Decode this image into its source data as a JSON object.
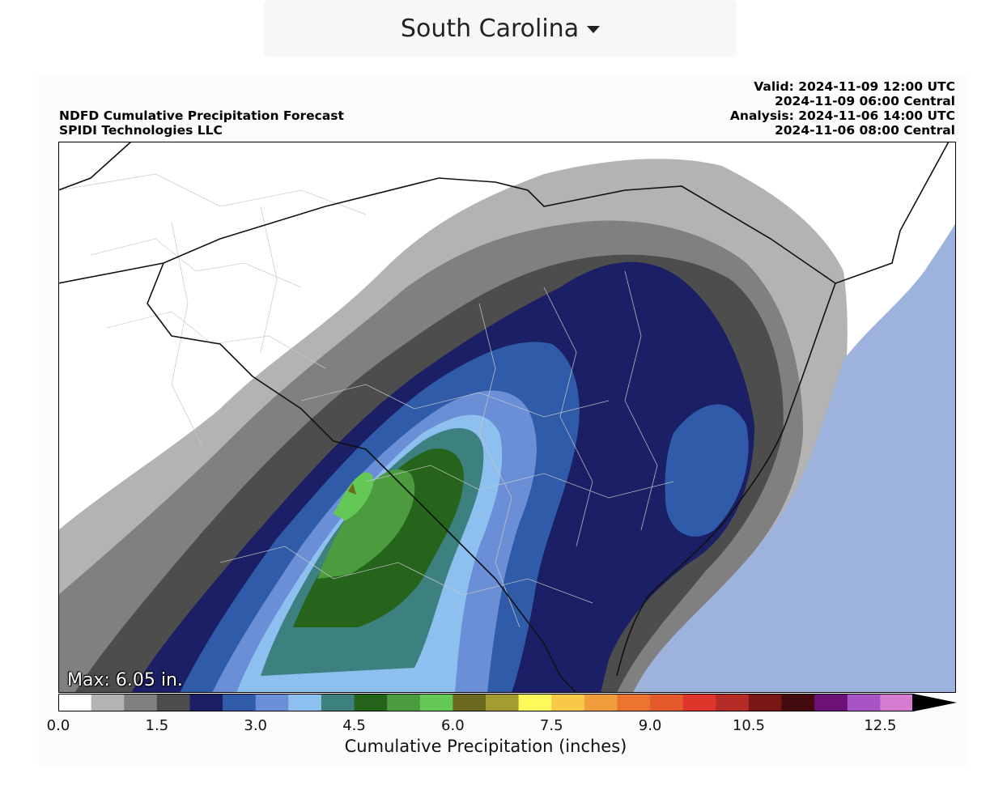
{
  "dropdown": {
    "selected": "South Carolina"
  },
  "header": {
    "title_line1": "NDFD Cumulative Precipitation Forecast",
    "title_line2": "SPIDI Technologies LLC",
    "valid_utc": "Valid: 2024-11-09 12:00 UTC",
    "valid_central": "2024-11-09 06:00 Central",
    "analysis_utc": "Analysis: 2024-11-06 14:00 UTC",
    "analysis_central": "2024-11-06 08:00 Central"
  },
  "map": {
    "max_label": "Max: 6.05 in.",
    "ocean_color": "#9db2dc"
  },
  "colorbar": {
    "label": "Cumulative Precipitation (inches)",
    "ticks": [
      "0.0",
      "1.5",
      "3.0",
      "4.5",
      "6.0",
      "7.5",
      "9.0",
      "10.5",
      "12.5"
    ],
    "tick_values": [
      0.0,
      1.5,
      3.0,
      4.5,
      6.0,
      7.5,
      9.0,
      10.5,
      12.5
    ],
    "min": 0.0,
    "max": 13.0,
    "bin_width": 0.5,
    "colors": [
      "#ffffff",
      "#b3b3b3",
      "#808080",
      "#4d4d4d",
      "#1b1f66",
      "#2f5ba8",
      "#6b8fd6",
      "#8dc0ef",
      "#3c8180",
      "#26641c",
      "#4c9b3e",
      "#63c855",
      "#6d6a1f",
      "#a39c33",
      "#fdfb5b",
      "#f8c948",
      "#f09d3d",
      "#ec7431",
      "#e45a2b",
      "#e0352b",
      "#b42a25",
      "#7a1714",
      "#430b0d",
      "#6b1177",
      "#a754c4",
      "#d67bd2"
    ]
  }
}
